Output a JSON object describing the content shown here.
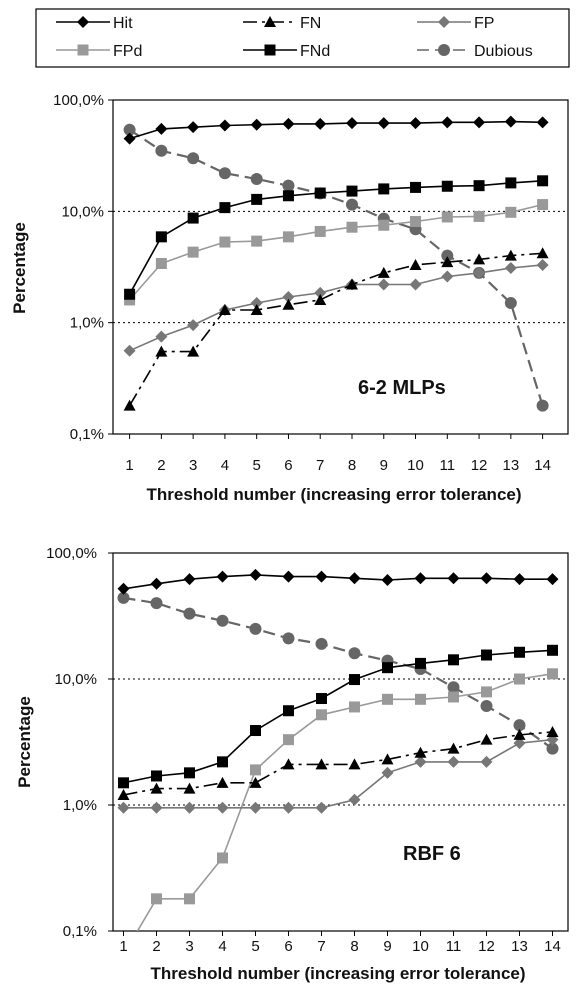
{
  "legend": {
    "placement": "top",
    "entries": [
      {
        "name": "Hit",
        "color": "#000000",
        "marker": "diamond",
        "dash": "solid"
      },
      {
        "name": "FN",
        "color": "#000000",
        "marker": "triangle",
        "dash": "dashdot"
      },
      {
        "name": "FP",
        "color": "#777777",
        "marker": "diamond",
        "dash": "solid"
      },
      {
        "name": "FPd",
        "color": "#999999",
        "marker": "square",
        "dash": "solid"
      },
      {
        "name": "FNd",
        "color": "#000000",
        "marker": "square",
        "dash": "solid"
      },
      {
        "name": "Dubious",
        "color": "#666666",
        "marker": "circle",
        "dash": "longdash"
      }
    ]
  },
  "chart_data": [
    {
      "type": "line",
      "annotation": "6-2 MLPs",
      "xlabel": "Threshold number (increasing error tolerance)",
      "ylabel": "Percentage",
      "yscale": "log",
      "ylim": [
        0.1,
        100
      ],
      "yticks": [
        0.1,
        1,
        10,
        100
      ],
      "ytick_labels": [
        "0,1%",
        "1,0%",
        "10,0%",
        "100,0%"
      ],
      "gridlines": [
        1,
        10
      ],
      "x": [
        1,
        2,
        3,
        4,
        5,
        6,
        7,
        8,
        9,
        10,
        11,
        12,
        13,
        14
      ],
      "series": [
        {
          "name": "Hit",
          "values": [
            45,
            55,
            57,
            59,
            60,
            61,
            61,
            62,
            62,
            62,
            63,
            63,
            64,
            63
          ]
        },
        {
          "name": "FN",
          "values": [
            0.18,
            0.55,
            0.55,
            1.3,
            1.3,
            1.45,
            1.6,
            2.2,
            2.8,
            3.3,
            3.5,
            3.7,
            4.0,
            4.2
          ]
        },
        {
          "name": "FP",
          "values": [
            0.56,
            0.75,
            0.95,
            1.3,
            1.5,
            1.7,
            1.85,
            2.2,
            2.2,
            2.2,
            2.6,
            2.8,
            3.1,
            3.3
          ]
        },
        {
          "name": "FPd",
          "values": [
            1.6,
            3.4,
            4.3,
            5.3,
            5.4,
            5.9,
            6.6,
            7.2,
            7.5,
            8.1,
            8.9,
            9.0,
            9.8,
            11.5
          ]
        },
        {
          "name": "FNd",
          "values": [
            1.8,
            5.9,
            8.7,
            10.8,
            12.8,
            13.8,
            14.6,
            15.2,
            15.9,
            16.4,
            16.8,
            17.0,
            18.0,
            18.8
          ]
        },
        {
          "name": "Dubious",
          "values": [
            54,
            35,
            30,
            22,
            19.5,
            17,
            14.5,
            11.5,
            8.6,
            6.9,
            4.0,
            2.8,
            1.5,
            0.18
          ]
        }
      ]
    },
    {
      "type": "line",
      "annotation": "RBF 6",
      "xlabel": "Threshold number (increasing error tolerance)",
      "ylabel": "Percentage",
      "yscale": "log",
      "ylim": [
        0.1,
        100
      ],
      "yticks": [
        0.1,
        1,
        10,
        100
      ],
      "ytick_labels": [
        "0,1%",
        "1,0%",
        "10,0%",
        "100,0%"
      ],
      "gridlines": [
        1,
        10
      ],
      "x": [
        1,
        2,
        3,
        4,
        5,
        6,
        7,
        8,
        9,
        10,
        11,
        12,
        13,
        14
      ],
      "series": [
        {
          "name": "Hit",
          "values": [
            52,
            57,
            62,
            65,
            67,
            65,
            65,
            63,
            61,
            63,
            63,
            63,
            62,
            62
          ]
        },
        {
          "name": "FN",
          "values": [
            1.2,
            1.35,
            1.35,
            1.5,
            1.5,
            2.1,
            2.1,
            2.1,
            2.3,
            2.6,
            2.8,
            3.3,
            3.6,
            3.8
          ]
        },
        {
          "name": "FP",
          "values": [
            0.95,
            0.95,
            0.95,
            0.95,
            0.95,
            0.95,
            0.95,
            1.1,
            1.8,
            2.2,
            2.2,
            2.2,
            3.1,
            3.3
          ]
        },
        {
          "name": "FPd",
          "values": [
            0.065,
            0.18,
            0.18,
            0.38,
            1.9,
            3.3,
            5.2,
            6.0,
            6.9,
            6.9,
            7.2,
            7.9,
            10.0,
            11.0
          ]
        },
        {
          "name": "FNd",
          "values": [
            1.5,
            1.7,
            1.8,
            2.2,
            3.9,
            5.6,
            7.0,
            9.9,
            12.3,
            13.3,
            14.2,
            15.5,
            16.3,
            16.9
          ]
        },
        {
          "name": "Dubious",
          "values": [
            44,
            40,
            33,
            29,
            25,
            21,
            19,
            16,
            14,
            12,
            8.6,
            6.1,
            4.3,
            2.8
          ]
        }
      ]
    }
  ]
}
